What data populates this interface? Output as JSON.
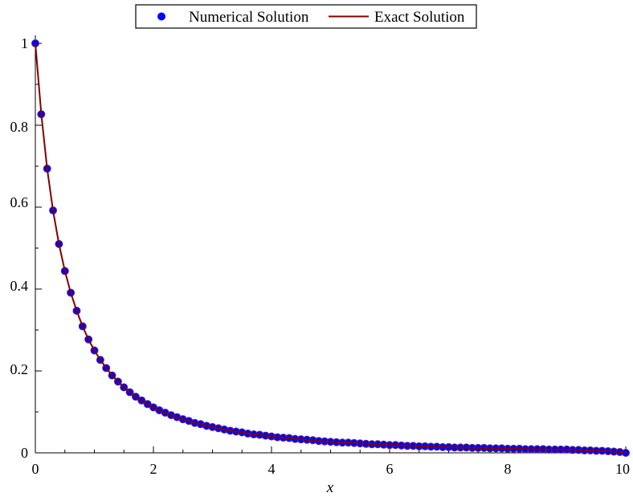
{
  "chart_data": {
    "type": "line",
    "title": "",
    "xlabel": "x",
    "ylabel": "",
    "xlim": [
      0,
      10
    ],
    "ylim": [
      0,
      1
    ],
    "grid": false,
    "legend_position": "top-center",
    "x_ticks": [
      "0",
      "2",
      "4",
      "6",
      "8",
      "10"
    ],
    "y_ticks": [
      "0",
      "0.2",
      "0.4",
      "0.6",
      "0.8",
      "1"
    ],
    "series": [
      {
        "name": "Numerical Solution",
        "kind": "scatter",
        "color": "#0000ff",
        "edge_color": "#5a2a8a",
        "x": [
          0,
          0.1,
          0.2,
          0.3,
          0.4,
          0.5,
          0.6,
          0.7,
          0.8,
          0.9,
          1.0,
          1.1,
          1.2,
          1.3,
          1.4,
          1.5,
          1.6,
          1.7,
          1.8,
          1.9,
          2.0,
          2.1,
          2.2,
          2.3,
          2.4,
          2.5,
          2.6,
          2.7,
          2.8,
          2.9,
          3.0,
          3.1,
          3.2,
          3.3,
          3.4,
          3.5,
          3.6,
          3.7,
          3.8,
          3.9,
          4.0,
          4.1,
          4.2,
          4.3,
          4.4,
          4.5,
          4.6,
          4.7,
          4.8,
          4.9,
          5.0,
          5.1,
          5.2,
          5.3,
          5.4,
          5.5,
          5.6,
          5.7,
          5.8,
          5.9,
          6.0,
          6.1,
          6.2,
          6.3,
          6.4,
          6.5,
          6.6,
          6.7,
          6.8,
          6.9,
          7.0,
          7.1,
          7.2,
          7.3,
          7.4,
          7.5,
          7.6,
          7.7,
          7.8,
          7.9,
          8.0,
          8.1,
          8.2,
          8.3,
          8.4,
          8.5,
          8.6,
          8.7,
          8.8,
          8.9,
          9.0,
          9.1,
          9.2,
          9.3,
          9.4,
          9.5,
          9.6,
          9.7,
          9.8,
          9.9,
          10.0
        ],
        "y": [
          1.0,
          0.827,
          0.694,
          0.592,
          0.51,
          0.444,
          0.391,
          0.347,
          0.309,
          0.277,
          0.25,
          0.227,
          0.207,
          0.189,
          0.174,
          0.16,
          0.148,
          0.137,
          0.128,
          0.119,
          0.111,
          0.104,
          0.098,
          0.092,
          0.087,
          0.082,
          0.078,
          0.073,
          0.07,
          0.066,
          0.063,
          0.06,
          0.057,
          0.054,
          0.052,
          0.05,
          0.047,
          0.045,
          0.044,
          0.042,
          0.04,
          0.038,
          0.037,
          0.036,
          0.034,
          0.033,
          0.032,
          0.031,
          0.029,
          0.028,
          0.027,
          0.026,
          0.025,
          0.025,
          0.024,
          0.023,
          0.022,
          0.021,
          0.021,
          0.02,
          0.019,
          0.019,
          0.018,
          0.017,
          0.017,
          0.016,
          0.016,
          0.015,
          0.015,
          0.014,
          0.014,
          0.013,
          0.013,
          0.013,
          0.012,
          0.012,
          0.012,
          0.011,
          0.011,
          0.011,
          0.01,
          0.01,
          0.01,
          0.009,
          0.009,
          0.009,
          0.009,
          0.008,
          0.008,
          0.008,
          0.008,
          0.007,
          0.007,
          0.006,
          0.006,
          0.005,
          0.005,
          0.004,
          0.003,
          0.002,
          0.0
        ]
      },
      {
        "name": "Exact Solution",
        "kind": "line",
        "color": "#800000",
        "x": [
          0,
          0.1,
          0.2,
          0.3,
          0.4,
          0.5,
          0.6,
          0.7,
          0.8,
          0.9,
          1.0,
          1.1,
          1.2,
          1.3,
          1.4,
          1.5,
          1.6,
          1.7,
          1.8,
          1.9,
          2.0,
          2.1,
          2.2,
          2.3,
          2.4,
          2.5,
          2.6,
          2.7,
          2.8,
          2.9,
          3.0,
          3.1,
          3.2,
          3.3,
          3.4,
          3.5,
          3.6,
          3.7,
          3.8,
          3.9,
          4.0,
          4.1,
          4.2,
          4.3,
          4.4,
          4.5,
          4.6,
          4.7,
          4.8,
          4.9,
          5.0,
          5.1,
          5.2,
          5.3,
          5.4,
          5.5,
          5.6,
          5.7,
          5.8,
          5.9,
          6.0,
          6.1,
          6.2,
          6.3,
          6.4,
          6.5,
          6.6,
          6.7,
          6.8,
          6.9,
          7.0,
          7.1,
          7.2,
          7.3,
          7.4,
          7.5,
          7.6,
          7.7,
          7.8,
          7.9,
          8.0,
          8.1,
          8.2,
          8.3,
          8.4,
          8.5,
          8.6,
          8.7,
          8.8,
          8.9,
          9.0,
          9.1,
          9.2,
          9.3,
          9.4,
          9.5,
          9.6,
          9.7,
          9.8,
          9.9,
          10.0
        ],
        "y": [
          1.0,
          0.827,
          0.694,
          0.592,
          0.51,
          0.444,
          0.391,
          0.347,
          0.309,
          0.277,
          0.25,
          0.227,
          0.207,
          0.189,
          0.174,
          0.16,
          0.148,
          0.137,
          0.128,
          0.119,
          0.111,
          0.104,
          0.098,
          0.092,
          0.087,
          0.082,
          0.078,
          0.073,
          0.07,
          0.066,
          0.063,
          0.06,
          0.057,
          0.054,
          0.052,
          0.05,
          0.047,
          0.045,
          0.044,
          0.042,
          0.04,
          0.038,
          0.037,
          0.036,
          0.034,
          0.033,
          0.032,
          0.031,
          0.029,
          0.028,
          0.027,
          0.026,
          0.025,
          0.025,
          0.024,
          0.023,
          0.022,
          0.021,
          0.021,
          0.02,
          0.019,
          0.019,
          0.018,
          0.017,
          0.017,
          0.016,
          0.016,
          0.015,
          0.015,
          0.014,
          0.014,
          0.013,
          0.013,
          0.013,
          0.012,
          0.012,
          0.012,
          0.011,
          0.011,
          0.011,
          0.01,
          0.01,
          0.01,
          0.009,
          0.009,
          0.009,
          0.009,
          0.008,
          0.008,
          0.008,
          0.008,
          0.007,
          0.007,
          0.006,
          0.006,
          0.005,
          0.005,
          0.004,
          0.003,
          0.002,
          0.0
        ]
      }
    ]
  }
}
